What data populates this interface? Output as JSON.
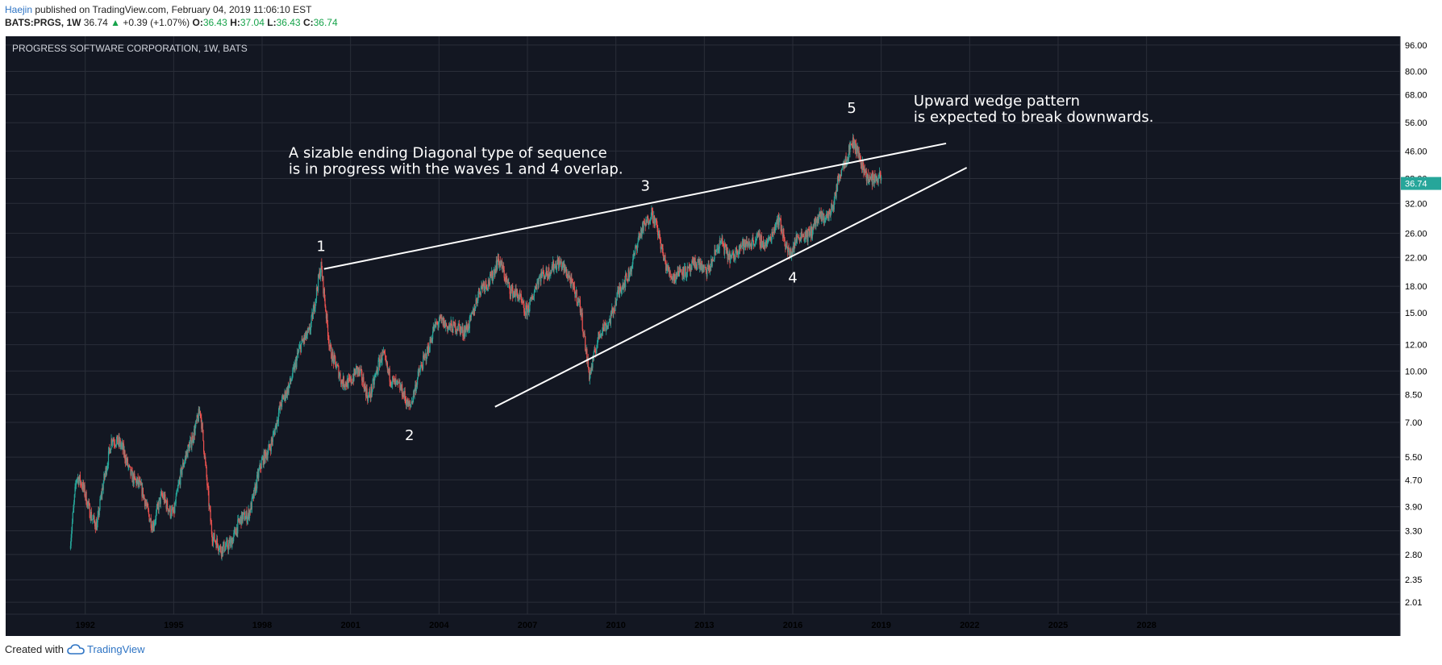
{
  "header": {
    "author": "Haejin",
    "published_text": "published on TradingView.com, February 04, 2019 11:06:10 EST",
    "symbol": "BATS:PRGS, 1W",
    "last": "36.74",
    "change": "+0.39 (+1.07%)",
    "open_label": "O:",
    "open": "36.43",
    "high_label": "H:",
    "high": "37.04",
    "low_label": "L:",
    "low": "36.43",
    "close_label": "C:",
    "close": "36.74"
  },
  "footer": {
    "created_with": "Created with",
    "brand": "TradingView",
    "brand_icon": "cloud-logo-icon"
  },
  "colors": {
    "background": "#131722",
    "grid": "#2a2e39",
    "up": "#26a69a",
    "down": "#ef5350",
    "annotation": "#ffffff",
    "price_label_bg": "#26a69a",
    "axis_text": "#d1d4dc"
  },
  "chart_data": {
    "type": "candlestick",
    "title": "PROGRESS SOFTWARE CORPORATION, 1W, BATS",
    "xlabel": "",
    "ylabel": "",
    "scale": "log",
    "grid": true,
    "ylim": [
      1.85,
      102
    ],
    "xlim": [
      1989.3,
      2036.6
    ],
    "x_ticks": [
      "1992",
      "1995",
      "1998",
      "2001",
      "2004",
      "2007",
      "2010",
      "2013",
      "2016",
      "2019",
      "2022",
      "2025",
      "2028"
    ],
    "y_ticks": [
      "96.00",
      "80.00",
      "68.00",
      "56.00",
      "46.00",
      "38.00",
      "32.00",
      "26.00",
      "22.00",
      "18.00",
      "15.00",
      "12.00",
      "10.00",
      "8.50",
      "7.00",
      "5.50",
      "4.70",
      "3.90",
      "3.30",
      "2.80",
      "2.35",
      "2.01"
    ],
    "last_price": "36.74",
    "price_path": [
      [
        1991.5,
        3.2
      ],
      [
        1991.7,
        4.8
      ],
      [
        1992.0,
        4.2
      ],
      [
        1992.4,
        3.4
      ],
      [
        1992.9,
        6.5
      ],
      [
        1993.3,
        5.6
      ],
      [
        1993.8,
        4.5
      ],
      [
        1994.3,
        3.5
      ],
      [
        1994.6,
        4.1
      ],
      [
        1995.0,
        3.8
      ],
      [
        1995.5,
        6.0
      ],
      [
        1995.9,
        7.4
      ],
      [
        1996.3,
        3.3
      ],
      [
        1996.6,
        2.8
      ],
      [
        1997.0,
        3.2
      ],
      [
        1997.5,
        3.7
      ],
      [
        1998.0,
        5.2
      ],
      [
        1998.5,
        7.0
      ],
      [
        1999.0,
        9.8
      ],
      [
        1999.6,
        13.5
      ],
      [
        2000.0,
        20.0
      ],
      [
        2000.3,
        12.0
      ],
      [
        2000.7,
        9.0
      ],
      [
        2001.2,
        10.0
      ],
      [
        2001.6,
        8.5
      ],
      [
        2002.1,
        11.0
      ],
      [
        2002.6,
        8.8
      ],
      [
        2003.0,
        8.0
      ],
      [
        2003.4,
        10.0
      ],
      [
        2003.8,
        13.5
      ],
      [
        2004.4,
        14.0
      ],
      [
        2004.8,
        12.8
      ],
      [
        2005.5,
        18.0
      ],
      [
        2006.0,
        21.0
      ],
      [
        2006.6,
        17.0
      ],
      [
        2006.9,
        15.0
      ],
      [
        2007.3,
        18.0
      ],
      [
        2007.8,
        21.0
      ],
      [
        2008.4,
        20.0
      ],
      [
        2008.8,
        15.0
      ],
      [
        2009.1,
        10.0
      ],
      [
        2009.5,
        13.0
      ],
      [
        2010.0,
        16.0
      ],
      [
        2010.6,
        22.0
      ],
      [
        2011.0,
        28.0
      ],
      [
        2011.2,
        31.0
      ],
      [
        2011.6,
        22.0
      ],
      [
        2012.0,
        19.0
      ],
      [
        2012.6,
        21.0
      ],
      [
        2013.0,
        20.0
      ],
      [
        2013.6,
        24.0
      ],
      [
        2014.0,
        22.0
      ],
      [
        2014.5,
        25.0
      ],
      [
        2015.0,
        24.0
      ],
      [
        2015.5,
        28.0
      ],
      [
        2015.9,
        23.0
      ],
      [
        2016.4,
        26.0
      ],
      [
        2016.9,
        28.0
      ],
      [
        2017.4,
        32.0
      ],
      [
        2017.7,
        42.0
      ],
      [
        2018.0,
        50.0
      ],
      [
        2018.3,
        42.0
      ],
      [
        2018.7,
        38.0
      ],
      [
        2019.0,
        36.74
      ]
    ],
    "wave_labels": [
      {
        "label": "1",
        "x": 2000.0,
        "y": 23.0
      },
      {
        "label": "2",
        "x": 2003.0,
        "y": 6.2
      },
      {
        "label": "3",
        "x": 2011.0,
        "y": 35.0
      },
      {
        "label": "4",
        "x": 2016.0,
        "y": 18.5
      },
      {
        "label": "5",
        "x": 2018.0,
        "y": 60.0
      }
    ],
    "trendlines": [
      {
        "name": "upper",
        "x1": 2000.1,
        "y1": 20.3,
        "x2": 2021.2,
        "y2": 48.5
      },
      {
        "name": "lower",
        "x1": 2005.9,
        "y1": 7.8,
        "x2": 2021.9,
        "y2": 41.0
      }
    ],
    "annotations": [
      {
        "lines": [
          "A sizable ending Diagonal type of sequence",
          "is in progress with the waves 1 and 4 overlap."
        ],
        "x": 1998.9,
        "y": 44.0
      },
      {
        "lines": [
          "Upward wedge pattern",
          "is expected to break downwards."
        ],
        "x": 2020.1,
        "y": 63.0
      }
    ]
  }
}
